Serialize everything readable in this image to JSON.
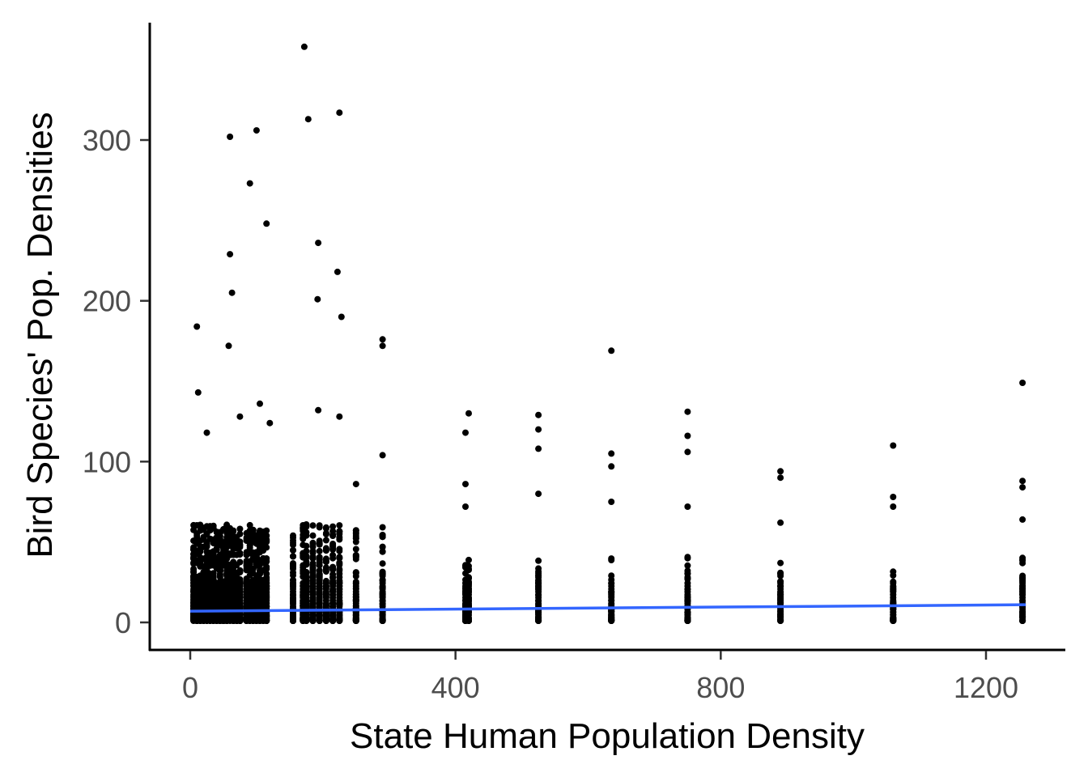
{
  "chart_data": {
    "type": "scatter",
    "title": "",
    "xlabel": "State Human Population Density",
    "ylabel": "Bird Species' Pop. Densities",
    "xlim": [
      -30,
      1320
    ],
    "ylim": [
      -17,
      375
    ],
    "x_ticks": [
      0,
      400,
      800,
      1200
    ],
    "y_ticks": [
      0,
      100,
      200,
      300
    ],
    "x_tick_labels": [
      "0",
      "400",
      "800",
      "1200"
    ],
    "y_tick_labels": [
      "0",
      "100",
      "200",
      "300"
    ],
    "grid": false,
    "legend": "none",
    "point_color": "#000000",
    "trend_color": "#3366FF",
    "trend_line": {
      "x": [
        0,
        1260
      ],
      "y": [
        7,
        11
      ]
    },
    "x_clusters": [
      5,
      10,
      15,
      20,
      25,
      30,
      35,
      40,
      45,
      50,
      55,
      60,
      65,
      70,
      75,
      85,
      90,
      95,
      100,
      105,
      110,
      115,
      155,
      170,
      175,
      185,
      195,
      205,
      215,
      225,
      250,
      290,
      415,
      420,
      525,
      635,
      750,
      890,
      1060,
      1255
    ],
    "outliers": [
      {
        "x": 10,
        "y": 184
      },
      {
        "x": 12,
        "y": 143
      },
      {
        "x": 60,
        "y": 302
      },
      {
        "x": 60,
        "y": 229
      },
      {
        "x": 63,
        "y": 205
      },
      {
        "x": 58,
        "y": 172
      },
      {
        "x": 90,
        "y": 273
      },
      {
        "x": 100,
        "y": 306
      },
      {
        "x": 115,
        "y": 248
      },
      {
        "x": 172,
        "y": 358
      },
      {
        "x": 178,
        "y": 313
      },
      {
        "x": 193,
        "y": 236
      },
      {
        "x": 192,
        "y": 201
      },
      {
        "x": 225,
        "y": 317
      },
      {
        "x": 222,
        "y": 218
      },
      {
        "x": 228,
        "y": 190
      },
      {
        "x": 290,
        "y": 176
      },
      {
        "x": 290,
        "y": 172
      },
      {
        "x": 635,
        "y": 169
      },
      {
        "x": 1255,
        "y": 149
      },
      {
        "x": 105,
        "y": 136
      },
      {
        "x": 193,
        "y": 132
      },
      {
        "x": 420,
        "y": 130
      },
      {
        "x": 525,
        "y": 129
      },
      {
        "x": 750,
        "y": 131
      },
      {
        "x": 415,
        "y": 118
      },
      {
        "x": 525,
        "y": 120
      },
      {
        "x": 750,
        "y": 116
      },
      {
        "x": 1060,
        "y": 110
      },
      {
        "x": 525,
        "y": 108
      },
      {
        "x": 635,
        "y": 105
      },
      {
        "x": 750,
        "y": 106
      },
      {
        "x": 290,
        "y": 104
      },
      {
        "x": 635,
        "y": 97
      },
      {
        "x": 890,
        "y": 94
      },
      {
        "x": 890,
        "y": 90
      },
      {
        "x": 1255,
        "y": 88
      },
      {
        "x": 1255,
        "y": 84
      },
      {
        "x": 415,
        "y": 86
      },
      {
        "x": 525,
        "y": 80
      },
      {
        "x": 1060,
        "y": 78
      },
      {
        "x": 1060,
        "y": 72
      },
      {
        "x": 750,
        "y": 72
      },
      {
        "x": 635,
        "y": 75
      },
      {
        "x": 415,
        "y": 72
      },
      {
        "x": 1255,
        "y": 64
      },
      {
        "x": 890,
        "y": 62
      },
      {
        "x": 250,
        "y": 86
      },
      {
        "x": 225,
        "y": 128
      },
      {
        "x": 75,
        "y": 128
      },
      {
        "x": 25,
        "y": 118
      },
      {
        "x": 120,
        "y": 124
      }
    ]
  }
}
